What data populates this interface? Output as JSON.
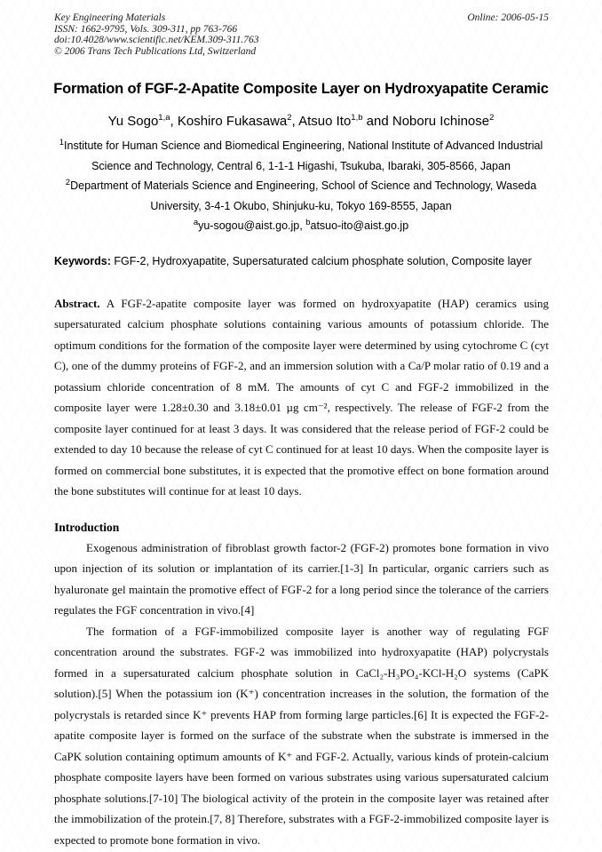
{
  "header": {
    "journal": "Key Engineering Materials",
    "issn_line": "ISSN: 1662-9795, Vols. 309-311, pp 763-766",
    "doi_line": "doi:10.4028/www.scientific.net/KEM.309-311.763",
    "copyright_line": "© 2006 Trans Tech Publications Ltd, Switzerland",
    "online_date": "Online: 2006-05-15"
  },
  "article": {
    "title": "Formation of FGF-2-Apatite Composite Layer on Hydroxyapatite Ceramic",
    "authors": [
      {
        "name": "Yu Sogo",
        "sup": "1,a",
        "sep": ", "
      },
      {
        "name": "Koshiro Fukasawa",
        "sup": "2",
        "sep": ", "
      },
      {
        "name": "Atsuo Ito",
        "sup": "1,b",
        "sep": " and "
      },
      {
        "name": "Noboru Ichinose",
        "sup": "2",
        "sep": ""
      }
    ],
    "affiliations": [
      {
        "sup": "1",
        "text": "Institute for Human Science and Biomedical Engineering, National Institute of Advanced Industrial Science and Technology, Central 6, 1-1-1 Higashi, Tsukuba, Ibaraki, 305-8566, Japan"
      },
      {
        "sup": "2",
        "text": "Department of Materials Science and Engineering, School of Science and Technology, Waseda University, 3-4-1 Okubo, Shinjuku-ku, Tokyo 169-8555, Japan"
      }
    ],
    "emails": [
      {
        "sup": "a",
        "text": "yu-sogou@aist.go.jp, "
      },
      {
        "sup": "b",
        "text": "atsuo-ito@aist.go.jp"
      }
    ],
    "keywords_label": "Keywords:",
    "keywords": " FGF-2, Hydroxyapatite, Supersaturated calcium phosphate solution, Composite layer",
    "abstract_label": "Abstract.",
    "abstract": " A FGF-2-apatite composite layer was formed on hydroxyapatite (HAP) ceramics using supersaturated calcium phosphate solutions containing various amounts of potassium chloride. The optimum conditions for the formation of the composite layer were determined by using cytochrome C (cyt C), one of the dummy proteins of FGF-2, and an immersion solution with a Ca/P molar ratio of 0.19 and a potassium chloride concentration of 8 mM. The amounts of cyt C and FGF-2 immobilized in the composite layer were 1.28±0.30 and 3.18±0.01 µg cm⁻², respectively. The release of FGF-2 from the composite layer continued for at least 3 days. It was considered that the release period of FGF-2 could be extended to day 10 because the release of cyt C continued for at least 10 days. When the composite layer is formed on commercial bone substitutes, it is expected that the promotive effect on bone formation around the bone substitutes will continue for at least 10 days.",
    "sections": [
      {
        "heading": "Introduction",
        "paragraphs": [
          "Exogenous administration of fibroblast growth factor-2 (FGF-2) promotes bone formation in vivo upon injection of its solution or implantation of its carrier.[1-3] In particular, organic carriers such as hyaluronate gel maintain the promotive effect of FGF-2 for a long period since the tolerance of the carriers regulates the FGF concentration in vivo.[4]",
          "The formation of a FGF-immobilized composite layer is another way of regulating FGF concentration around the substrates. FGF-2 was immobilized into hydroxyapatite (HAP) polycrystals formed in a supersaturated calcium phosphate solution in CaCl₂-H₃PO₄-KCl-H₂O systems (CaPK solution).[5] When the potassium ion (K⁺) concentration increases in the solution, the formation of the polycrystals is retarded since K⁺ prevents HAP from forming large particles.[6] It is expected the FGF-2-apatite composite layer is formed on the surface of the substrate when the substrate is immersed in the CaPK solution containing optimum amounts of K⁺ and FGF-2. Actually, various kinds of protein-calcium phosphate composite layers have been formed on various substrates using various supersaturated calcium phosphate solutions.[7-10] The biological activity of the protein in the composite layer was retained after the immobilization of the protein.[7, 8] Therefore, substrates with a FGF-2-immobilized composite layer is expected to promote bone formation in vivo."
        ]
      }
    ]
  }
}
